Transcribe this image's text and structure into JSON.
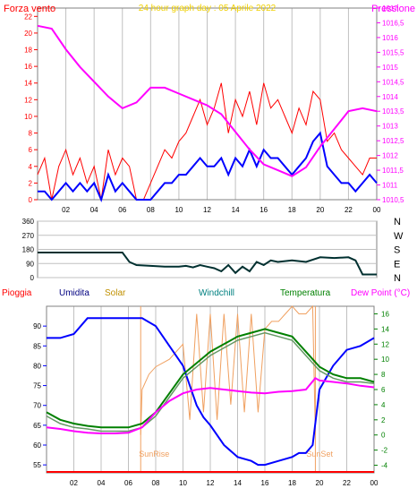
{
  "colors": {
    "background": "#ffffff",
    "frame": "#808080",
    "grid": "#c0c0c0",
    "wind_gust": "#ff0000",
    "wind_avg": "#0000ff",
    "pressure": "#ff00ff",
    "wind_dir": "#003030",
    "humidity": "#0000ff",
    "solar": "#f0a060",
    "windchill": "#669966",
    "temperature": "#008000",
    "dew_point": "#ff00ff",
    "rain": "#ff0000",
    "sun_marker": "#f0a060",
    "title": "#f0d000",
    "rain_label": "#ff0000",
    "humidity_label": "#000080",
    "solar_label": "#c09000",
    "windchill_label": "#008080",
    "temperature_label": "#008000",
    "dew_label": "#ff00ff"
  },
  "chart_data": [
    {
      "type": "line",
      "title": "24 hour graph day : 05 Aprile 2022",
      "left_axis_label": "Forza vento",
      "right_axis_label": "Pressione",
      "x_ticks": [
        "02",
        "04",
        "06",
        "08",
        "10",
        "12",
        "14",
        "16",
        "18",
        "20",
        "22",
        "00"
      ],
      "y_left_ticks": [
        "0",
        "2",
        "4",
        "6",
        "8",
        "10",
        "12",
        "14",
        "16",
        "18",
        "20",
        "22"
      ],
      "y_left_range": [
        0,
        23
      ],
      "y_right_ticks": [
        "1010,5",
        "1011",
        "1011,5",
        "1012",
        "1012,5",
        "1013",
        "1013,5",
        "1014",
        "1014,5",
        "1015",
        "1015,5",
        "1016",
        "1016,5",
        "1017"
      ],
      "y_right_range": [
        1010.5,
        1017
      ],
      "grid": "vertical",
      "series": [
        {
          "name": "wind_gust",
          "x": [
            0,
            0.5,
            1,
            1.5,
            2,
            2.5,
            3,
            3.5,
            4,
            4.5,
            5,
            5.5,
            6,
            6.5,
            7,
            7.5,
            8,
            8.5,
            9,
            9.5,
            10,
            10.5,
            11,
            11.5,
            12,
            12.5,
            13,
            13.5,
            14,
            14.5,
            15,
            15.5,
            16,
            16.5,
            17,
            17.5,
            18,
            18.5,
            19,
            19.5,
            20,
            20.5,
            21,
            21.5,
            22,
            22.5,
            23,
            23.5,
            24
          ],
          "y": [
            3,
            5,
            0,
            4,
            6,
            3,
            5,
            2,
            4,
            0,
            6,
            3,
            5,
            4,
            0,
            0,
            2,
            4,
            6,
            5,
            7,
            8,
            10,
            12,
            9,
            11,
            14,
            8,
            12,
            10,
            13,
            9,
            14,
            11,
            12,
            10,
            8,
            11,
            9,
            13,
            12,
            7,
            8,
            6,
            5,
            4,
            3,
            5,
            5
          ]
        },
        {
          "name": "wind_avg",
          "x": [
            0,
            0.5,
            1,
            1.5,
            2,
            2.5,
            3,
            3.5,
            4,
            4.5,
            5,
            5.5,
            6,
            6.5,
            7,
            7.5,
            8,
            8.5,
            9,
            9.5,
            10,
            10.5,
            11,
            11.5,
            12,
            12.5,
            13,
            13.5,
            14,
            14.5,
            15,
            15.5,
            16,
            16.5,
            17,
            17.5,
            18,
            18.5,
            19,
            19.5,
            20,
            20.5,
            21,
            21.5,
            22,
            22.5,
            23,
            23.5,
            24
          ],
          "y": [
            1,
            1,
            0,
            1,
            2,
            1,
            2,
            1,
            2,
            0,
            3,
            1,
            2,
            1,
            0,
            0,
            0,
            1,
            2,
            2,
            3,
            3,
            4,
            5,
            4,
            4,
            5,
            3,
            5,
            4,
            6,
            4,
            6,
            5,
            5,
            4,
            3,
            4,
            5,
            7,
            8,
            4,
            3,
            2,
            2,
            1,
            2,
            3,
            2
          ]
        },
        {
          "name": "pressure",
          "x": [
            0,
            1,
            2,
            3,
            4,
            5,
            6,
            7,
            8,
            9,
            10,
            11,
            12,
            13,
            14,
            15,
            16,
            17,
            18,
            19,
            20,
            21,
            22,
            23,
            24
          ],
          "y": [
            1016.4,
            1016.3,
            1015.6,
            1015,
            1014.5,
            1014,
            1013.6,
            1013.8,
            1014.3,
            1014.3,
            1014.1,
            1013.9,
            1013.7,
            1013.4,
            1012.8,
            1012.2,
            1011.7,
            1011.5,
            1011.3,
            1011.6,
            1012.3,
            1012.9,
            1013.5,
            1013.6,
            1013.5
          ]
        }
      ]
    },
    {
      "type": "line",
      "title": "",
      "right_axis_labels": [
        "N",
        "W",
        "S",
        "E",
        "N"
      ],
      "y_ticks": [
        "360",
        "270",
        "180",
        "90",
        "0"
      ],
      "y_range": [
        0,
        360
      ],
      "series": [
        {
          "name": "wind_direction",
          "x": [
            0,
            1,
            2,
            3,
            4,
            5,
            6,
            6.5,
            7,
            8,
            9,
            10,
            10.5,
            11,
            11.5,
            12,
            12.5,
            13,
            13.5,
            14,
            14.5,
            15,
            15.5,
            16,
            16.5,
            17,
            18,
            19,
            20,
            21,
            22,
            22.5,
            23,
            24
          ],
          "y": [
            160,
            160,
            160,
            160,
            160,
            160,
            160,
            100,
            80,
            75,
            70,
            70,
            75,
            65,
            80,
            70,
            60,
            40,
            80,
            30,
            70,
            40,
            100,
            80,
            110,
            100,
            110,
            100,
            130,
            125,
            130,
            110,
            20,
            20
          ]
        }
      ]
    },
    {
      "type": "line",
      "title": "",
      "legend": [
        "Pioggia",
        "Umidita",
        "Solar",
        "Windchill",
        "Temperatura",
        "Dew Point (°C)"
      ],
      "x_ticks": [
        "02",
        "04",
        "06",
        "08",
        "10",
        "12",
        "14",
        "16",
        "18",
        "20",
        "22",
        "00"
      ],
      "y_left_ticks": [
        "55",
        "60",
        "65",
        "70",
        "75",
        "80",
        "85",
        "90"
      ],
      "y_left_range": [
        53,
        95
      ],
      "y_right_ticks": [
        "-4",
        "-2",
        "0",
        "2",
        "4",
        "6",
        "8",
        "10",
        "12",
        "14",
        "16"
      ],
      "y_right_range": [
        -5,
        17
      ],
      "annotations": [
        "SunRise",
        "SunSet"
      ],
      "sunrise_hour": 6.9,
      "sunset_hour": 19.7,
      "series": [
        {
          "name": "Umidita",
          "x": [
            0,
            1,
            2,
            3,
            4,
            5,
            6,
            7,
            8,
            9,
            10,
            10.5,
            11,
            11.5,
            12,
            13,
            14,
            15,
            15.5,
            16,
            17,
            18,
            18.5,
            19,
            19.5,
            20,
            21,
            22,
            23,
            24
          ],
          "y": [
            87,
            87,
            88,
            92,
            92,
            92,
            92,
            92,
            90,
            85,
            80,
            75,
            70,
            67,
            65,
            60,
            57,
            56,
            55,
            55,
            56,
            57,
            58,
            58,
            60,
            74,
            80,
            84,
            85,
            87
          ]
        },
        {
          "name": "Temperatura",
          "x": [
            0,
            1,
            2,
            3,
            4,
            5,
            6,
            7,
            8,
            9,
            10,
            11,
            12,
            13,
            14,
            15,
            16,
            17,
            18,
            19,
            20,
            21,
            22,
            23,
            24
          ],
          "y": [
            3,
            2,
            1.5,
            1.2,
            1,
            1,
            1,
            1.5,
            3,
            5.5,
            8,
            9.5,
            11,
            12,
            13,
            13.5,
            14,
            13.5,
            13,
            11,
            9,
            8,
            7.5,
            7.5,
            7
          ]
        },
        {
          "name": "Windchill",
          "x": [
            0,
            1,
            2,
            3,
            4,
            5,
            6,
            7,
            8,
            9,
            10,
            11,
            12,
            13,
            14,
            15,
            16,
            17,
            18,
            19,
            20,
            21,
            22,
            23,
            24
          ],
          "y": [
            2.5,
            1.5,
            1,
            0.8,
            0.5,
            0.5,
            0.5,
            1,
            2.5,
            5,
            7.5,
            9,
            10.5,
            11.5,
            12.5,
            13,
            13.5,
            13,
            12.5,
            10.5,
            8.5,
            7.5,
            7,
            7,
            6.8
          ]
        },
        {
          "name": "Dew Point (°C)",
          "x": [
            0,
            1,
            2,
            3,
            4,
            5,
            6,
            7,
            8,
            9,
            10,
            11,
            12,
            13,
            14,
            15,
            16,
            17,
            18,
            19,
            19.7,
            20,
            21,
            22,
            23,
            24
          ],
          "y": [
            1,
            0.8,
            0.5,
            0.3,
            0.2,
            0.2,
            0.3,
            1,
            3,
            4.5,
            5.5,
            6,
            6.2,
            6,
            5.8,
            5.6,
            5.5,
            5.7,
            5.8,
            6,
            7.5,
            7.2,
            7,
            6.8,
            6.5,
            6.3
          ]
        },
        {
          "name": "Solar",
          "x": [
            6.9,
            7,
            7.5,
            8,
            9,
            10,
            10.5,
            11,
            11.5,
            12,
            12.5,
            13,
            13.5,
            14,
            14.5,
            15,
            15.5,
            16,
            16.5,
            17,
            17.5,
            18,
            18.5,
            19,
            19.5,
            19.7
          ],
          "y": [
            0,
            6,
            8,
            9,
            10,
            12,
            2,
            16,
            3,
            16,
            2,
            16,
            4,
            16,
            3,
            16,
            3,
            14,
            15,
            15,
            16,
            17,
            16,
            16,
            17,
            0
          ]
        }
      ]
    }
  ]
}
